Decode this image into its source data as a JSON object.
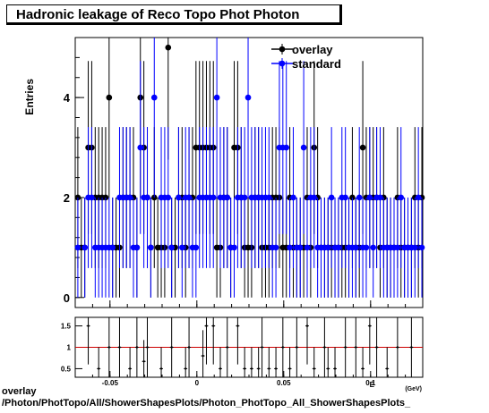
{
  "title": "Hadronic leakage of Reco Topo Phot Photon",
  "footer": {
    "line1": "overlay",
    "line2": "/Photon/PhotTopo/All/ShowerShapesPlots/Photon_PhotTopo_All_ShowerShapesPlots_"
  },
  "colors": {
    "overlay": "#000000",
    "standard": "#0000ff",
    "ratio_line": "#cc0000"
  },
  "chart_data": [
    {
      "type": "scatter",
      "title": "Hadronic leakage of Reco Topo Phot Photon",
      "ylabel": "Entries",
      "xlabel": "",
      "xlim": [
        -0.07,
        0.13
      ],
      "ylim": [
        -0.2,
        5.2
      ],
      "yticks": [
        0,
        2,
        4
      ],
      "yticklabels": [
        "0",
        "2",
        "4"
      ],
      "legend": {
        "placement": "top-right",
        "entries": [
          "overlay",
          "standard"
        ]
      },
      "series": [
        {
          "name": "overlay",
          "x": [
            -0.0685,
            -0.0665,
            -0.0645,
            -0.0625,
            -0.0605,
            -0.0585,
            -0.0565,
            -0.0545,
            -0.0525,
            -0.0505,
            -0.0485,
            -0.0465,
            -0.0445,
            -0.0425,
            -0.0405,
            -0.0385,
            -0.0365,
            -0.0345,
            -0.0325,
            -0.0305,
            -0.0285,
            -0.0265,
            -0.0245,
            -0.0225,
            -0.0205,
            -0.0185,
            -0.0165,
            -0.0145,
            -0.0125,
            -0.0105,
            -0.0085,
            -0.0065,
            -0.0045,
            -0.0025,
            -0.0005,
            0.0015,
            0.0035,
            0.0055,
            0.0075,
            0.0095,
            0.0115,
            0.0135,
            0.0155,
            0.0175,
            0.0195,
            0.0215,
            0.0235,
            0.0255,
            0.0275,
            0.0295,
            0.0315,
            0.0335,
            0.0355,
            0.0375,
            0.0395,
            0.0415,
            0.0435,
            0.0455,
            0.0475,
            0.0495,
            0.0515,
            0.0535,
            0.0555,
            0.0575,
            0.0595,
            0.0615,
            0.0635,
            0.0655,
            0.0675,
            0.0695,
            0.0715,
            0.0735,
            0.0755,
            0.0775,
            0.0795,
            0.0815,
            0.0835,
            0.0855,
            0.0875,
            0.0895,
            0.0915,
            0.0935,
            0.0955,
            0.0975,
            0.0995,
            0.1015,
            0.1035,
            0.1055,
            0.1075,
            0.1095,
            0.1115,
            0.1135,
            0.1155,
            0.1175,
            0.1195,
            0.1215,
            0.1235,
            0.1255,
            0.1275,
            0.1295
          ],
          "y": [
            2,
            1,
            1,
            3,
            3,
            2,
            2,
            2,
            2,
            4,
            1,
            1,
            1,
            2,
            2,
            2,
            2,
            1,
            4,
            3,
            2,
            1,
            2,
            1,
            1,
            1,
            5,
            1,
            1,
            2,
            2,
            1,
            2,
            2,
            3,
            3,
            3,
            3,
            3,
            3,
            1,
            1,
            2,
            2,
            1,
            3,
            3,
            2,
            1,
            1,
            1,
            2,
            2,
            1,
            1,
            1,
            2,
            2,
            2,
            1,
            1,
            2,
            1,
            1,
            1,
            1,
            2,
            1,
            3,
            2,
            1,
            1,
            1,
            1,
            1,
            1,
            1,
            1,
            1,
            2,
            1,
            1,
            3,
            2,
            2,
            2,
            2,
            1,
            2,
            1,
            1,
            1,
            2,
            1,
            1,
            1,
            1,
            2,
            1,
            2
          ],
          "yerr": [
            1.41,
            1,
            1,
            1.73,
            1.73,
            1.41,
            1.41,
            1.41,
            1.41,
            2,
            1,
            1,
            1,
            1.41,
            1.41,
            1.41,
            1.41,
            1,
            2,
            1.73,
            1.41,
            1,
            1.41,
            1,
            1,
            1,
            2.24,
            1,
            1,
            1.41,
            1.41,
            1,
            1.41,
            1.41,
            1.73,
            1.73,
            1.73,
            1.73,
            1.73,
            1.73,
            1,
            1,
            1.41,
            1.41,
            1,
            1.73,
            1.73,
            1.41,
            1,
            1,
            1,
            1.41,
            1.41,
            1,
            1,
            1,
            1.41,
            1.41,
            1.41,
            1,
            1,
            1.41,
            1,
            1,
            1,
            1,
            1.41,
            1,
            1.73,
            1.41,
            1,
            1,
            1,
            1,
            1,
            1,
            1,
            1,
            1,
            1.41,
            1,
            1,
            1.73,
            1.41,
            1.41,
            1.41,
            1.41,
            1,
            1.41,
            1,
            1,
            1,
            1.41,
            1,
            1,
            1,
            1,
            1.41,
            1,
            1.41
          ]
        },
        {
          "name": "standard",
          "x": [
            -0.0685,
            -0.0665,
            -0.0645,
            -0.0625,
            -0.0605,
            -0.0585,
            -0.0565,
            -0.0545,
            -0.0525,
            -0.0505,
            -0.0485,
            -0.0465,
            -0.0445,
            -0.0425,
            -0.0405,
            -0.0385,
            -0.0365,
            -0.0345,
            -0.0325,
            -0.0305,
            -0.0285,
            -0.0265,
            -0.0245,
            -0.0225,
            -0.0205,
            -0.0185,
            -0.0165,
            -0.0145,
            -0.0125,
            -0.0105,
            -0.0085,
            -0.0065,
            -0.0045,
            -0.0025,
            -0.0005,
            0.0015,
            0.0035,
            0.0055,
            0.0075,
            0.0095,
            0.0115,
            0.0135,
            0.0155,
            0.0175,
            0.0195,
            0.0215,
            0.0235,
            0.0255,
            0.0275,
            0.0295,
            0.0315,
            0.0335,
            0.0355,
            0.0375,
            0.0395,
            0.0415,
            0.0435,
            0.0455,
            0.0475,
            0.0495,
            0.0515,
            0.0535,
            0.0555,
            0.0575,
            0.0595,
            0.0615,
            0.0635,
            0.0655,
            0.0675,
            0.0695,
            0.0715,
            0.0735,
            0.0755,
            0.0775,
            0.0795,
            0.0815,
            0.0835,
            0.0855,
            0.0875,
            0.0895,
            0.0915,
            0.0935,
            0.0955,
            0.0975,
            0.0995,
            0.1015,
            0.1035,
            0.1055,
            0.1075,
            0.1095,
            0.1115,
            0.1135,
            0.1155,
            0.1175,
            0.1195,
            0.1215,
            0.1235,
            0.1255,
            0.1275,
            0.1295
          ],
          "y": [
            1,
            0,
            1,
            2,
            2,
            1,
            1,
            1,
            1,
            1,
            1,
            0,
            2,
            2,
            2,
            2,
            1,
            1,
            3,
            2,
            2,
            1,
            4,
            0,
            2,
            2,
            2,
            1,
            0,
            2,
            1,
            2,
            2,
            1,
            1,
            2,
            2,
            2,
            2,
            2,
            4,
            2,
            2,
            2,
            1,
            1,
            2,
            2,
            2,
            4,
            2,
            2,
            2,
            2,
            2,
            2,
            1,
            1,
            3,
            3,
            3,
            1,
            2,
            1,
            1,
            3,
            1,
            2,
            2,
            1,
            1,
            1,
            1,
            2,
            1,
            1,
            2,
            2,
            1,
            1,
            1,
            2,
            1,
            1,
            2,
            1,
            2,
            2,
            1,
            1,
            1,
            1,
            1,
            2,
            1,
            1,
            1,
            1,
            2,
            1
          ],
          "yerr": [
            1,
            0,
            1,
            1.41,
            1.41,
            1,
            1,
            1,
            1,
            1,
            1,
            0,
            1.41,
            1.41,
            1.41,
            1.41,
            1,
            1,
            1.73,
            1.41,
            1.41,
            1,
            2,
            0,
            1.41,
            1.41,
            1.41,
            1,
            0,
            1.41,
            1,
            1.41,
            1.41,
            1,
            1,
            1.41,
            1.41,
            1.41,
            1.41,
            1.41,
            2,
            1.41,
            1.41,
            1.41,
            1,
            1,
            1.41,
            1.41,
            1.41,
            2,
            1.41,
            1.41,
            1.41,
            1.41,
            1.41,
            1.41,
            1,
            1,
            1.73,
            1.73,
            1.73,
            1,
            1.41,
            1,
            1,
            1.73,
            1,
            1.41,
            1.41,
            1,
            1,
            1,
            1,
            1.41,
            1,
            1,
            1.41,
            1.41,
            1,
            1,
            1,
            1.41,
            1,
            1,
            1.41,
            1,
            1.41,
            1.41,
            1,
            1,
            1,
            1,
            1,
            1.41,
            1,
            1,
            1,
            1,
            1.41,
            1
          ]
        }
      ]
    },
    {
      "type": "scatter",
      "title": "",
      "xlabel": "E",
      "xunit": "(GeV)",
      "ylabel": "",
      "xlim": [
        -0.07,
        0.13
      ],
      "ylim": [
        0.3,
        1.7
      ],
      "xticks": [
        -0.05,
        0,
        0.05,
        0.1
      ],
      "xticklabels": [
        "-0.05",
        "0",
        "0.05",
        "0.1"
      ],
      "yticks": [
        0.5,
        1,
        1.5
      ],
      "yticklabels": [
        "0.5",
        "1",
        "1.5"
      ],
      "reference_line": 1,
      "series": [
        {
          "name": "",
          "x": [
            -0.0625,
            -0.0565,
            -0.0505,
            -0.0445,
            -0.0385,
            -0.0345,
            -0.0305,
            -0.0285,
            -0.0205,
            -0.0145,
            -0.0065,
            -0.0045,
            0.0035,
            0.0055,
            0.0095,
            0.0135,
            0.0175,
            0.0235,
            0.0275,
            0.0315,
            0.0355,
            0.0375,
            0.0415,
            0.0455,
            0.0495,
            0.0535,
            0.0575,
            0.0635,
            0.0675,
            0.0735,
            0.0755,
            0.0795,
            0.0855,
            0.0915,
            0.0955,
            0.0995,
            0.1035,
            0.1095,
            0.1155,
            0.1235
          ],
          "y": [
            1.5,
            0.5,
            1,
            1,
            0.5,
            1,
            0.67,
            1,
            0.5,
            1,
            0.5,
            1,
            0.8,
            1.5,
            1.5,
            0.5,
            1,
            1.5,
            0.5,
            0.5,
            0.5,
            1,
            0.5,
            0.5,
            1,
            0.5,
            1,
            1.5,
            0.5,
            1,
            0.5,
            0.5,
            1,
            1,
            0.5,
            1.5,
            1,
            0.5,
            1,
            1
          ],
          "yerr": [
            0.9,
            0.5,
            0.7,
            0.7,
            0.5,
            0.7,
            0.5,
            0.7,
            0.5,
            0.7,
            0.5,
            0.7,
            0.6,
            0.9,
            0.9,
            0.5,
            0.7,
            0.9,
            0.5,
            0.5,
            0.5,
            0.7,
            0.5,
            0.5,
            0.7,
            0.5,
            0.7,
            0.9,
            0.5,
            0.7,
            0.5,
            0.5,
            0.7,
            0.7,
            0.5,
            0.9,
            0.7,
            0.5,
            0.7,
            0.7
          ]
        }
      ]
    }
  ]
}
